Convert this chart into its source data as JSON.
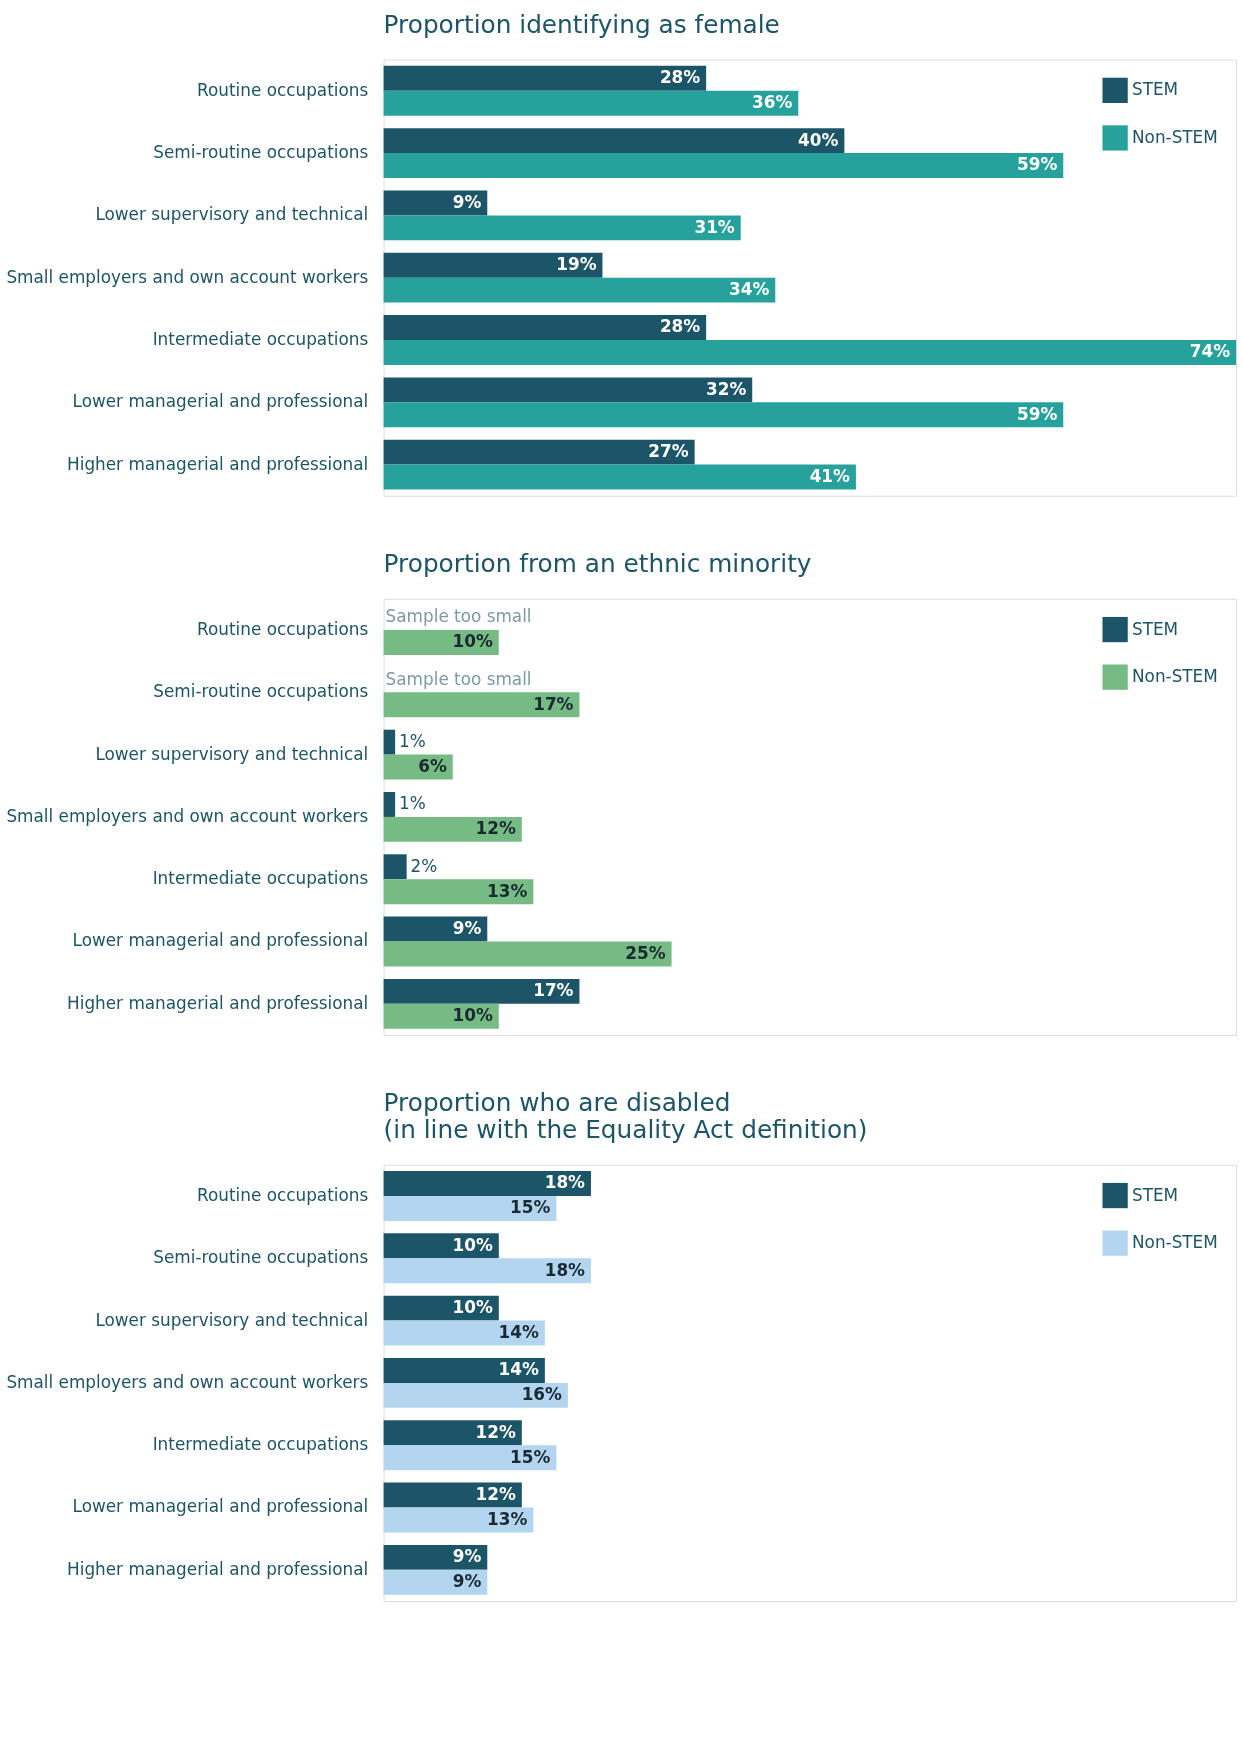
{
  "chart_data": [
    {
      "type": "bar",
      "orientation": "horizontal",
      "title": "Proportion identifying as female",
      "categories": [
        "Routine occupations",
        "Semi-routine occupations",
        "Lower supervisory and technical",
        "Small employers and own account workers",
        "Intermediate occupations",
        "Lower managerial and professional",
        "Higher managerial and professional"
      ],
      "xlim": [
        0,
        74
      ],
      "tick_labels": "y",
      "legend": "top right",
      "series": [
        {
          "name": "STEM",
          "color": "#1c5567",
          "values": [
            28,
            40,
            9,
            19,
            28,
            32,
            27
          ],
          "value_labels": [
            "28%",
            "40%",
            "9%",
            "19%",
            "28%",
            "32%",
            "27%"
          ]
        },
        {
          "name": "Non-STEM",
          "color": "#26a19b",
          "values": [
            36,
            59,
            31,
            34,
            74,
            59,
            41
          ],
          "value_labels": [
            "36%",
            "59%",
            "31%",
            "34%",
            "74%",
            "59%",
            "41%"
          ]
        }
      ]
    },
    {
      "type": "bar",
      "orientation": "horizontal",
      "title": "Proportion from an ethnic minority",
      "categories": [
        "Routine occupations",
        "Semi-routine occupations",
        "Lower supervisory and technical",
        "Small employers and own account workers",
        "Intermediate occupations",
        "Lower managerial and professional",
        "Higher managerial and professional"
      ],
      "xlim": [
        0,
        74
      ],
      "tick_labels": "y",
      "legend": "top right",
      "series": [
        {
          "name": "STEM",
          "color": "#1c5567",
          "values": [
            null,
            null,
            1,
            1,
            2,
            9,
            17
          ],
          "value_labels": [
            "Sample too small",
            "Sample too small",
            "1%",
            "1%",
            "2%",
            "9%",
            "17%"
          ]
        },
        {
          "name": "Non-STEM",
          "color": "#77bb84",
          "values": [
            10,
            17,
            6,
            12,
            13,
            25,
            10
          ],
          "value_labels": [
            "10%",
            "17%",
            "6%",
            "12%",
            "13%",
            "25%",
            "10%"
          ]
        }
      ]
    },
    {
      "type": "bar",
      "orientation": "horizontal",
      "title": "Proportion who are disabled\n(in line with the Equality Act definition)",
      "categories": [
        "Routine occupations",
        "Semi-routine occupations",
        "Lower supervisory and technical",
        "Small employers and own account workers",
        "Intermediate occupations",
        "Lower managerial and professional",
        "Higher managerial and professional"
      ],
      "xlim": [
        0,
        74
      ],
      "tick_labels": "y",
      "legend": "top right",
      "series": [
        {
          "name": "STEM",
          "color": "#1c5567",
          "values": [
            18,
            10,
            10,
            14,
            12,
            12,
            9
          ],
          "value_labels": [
            "18%",
            "10%",
            "10%",
            "14%",
            "12%",
            "12%",
            "9%"
          ]
        },
        {
          "name": "Non-STEM",
          "color": "#b3d5f0",
          "values": [
            15,
            18,
            14,
            16,
            15,
            13,
            9
          ],
          "value_labels": [
            "15%",
            "18%",
            "14%",
            "16%",
            "15%",
            "13%",
            "9%"
          ]
        }
      ]
    }
  ]
}
